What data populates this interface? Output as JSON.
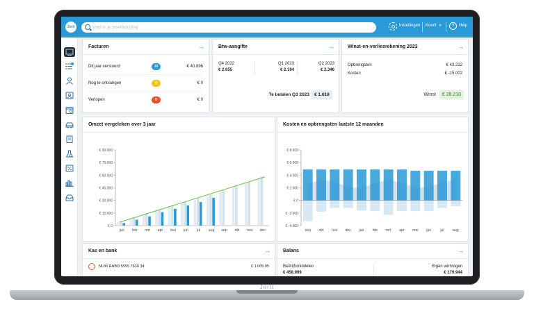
{
  "brand": "Jortt",
  "laptop_label": "Jortt",
  "search": {
    "placeholder": "Vind in je boekhouding"
  },
  "topbar": {
    "settings_label": "Instellingen",
    "user_label": "Koerlt",
    "user_chevron": "∨",
    "help_label": "Help"
  },
  "colors": {
    "primary": "#2a9ad6",
    "bar_light": "#cfe3ef",
    "green_line": "#6cc04a",
    "success_bg": "#e2f3dc"
  },
  "sidebar": {
    "icons": [
      "dashboard-icon",
      "list-icon",
      "person-icon",
      "contacts-icon",
      "calendar-icon",
      "car-icon",
      "document-icon",
      "flask-icon",
      "percent-icon",
      "bar-chart-icon",
      "inbox-icon"
    ]
  },
  "facturen": {
    "title": "Facturen",
    "rows": [
      {
        "label": "Dit jaar verstuurd",
        "count": "10",
        "amount": "€ 40.896",
        "color": "#2a9ad6"
      },
      {
        "label": "Nog te ontvangen",
        "count": "0",
        "amount": "€ 0",
        "color": "#f0c419"
      },
      {
        "label": "Verlopen",
        "count": "0",
        "amount": "€ 0",
        "color": "#e8532c"
      }
    ]
  },
  "btw": {
    "title": "Btw-aangifte",
    "quarters": [
      {
        "period": "Q4 2022",
        "amount": "€ 2.655"
      },
      {
        "period": "Q1 2023",
        "amount": "€ 2.194"
      },
      {
        "period": "Q2 2023",
        "amount": "€ 2.346"
      }
    ],
    "due_label": "Te betalen Q3 2023",
    "due_amount": "€ 1.618"
  },
  "winst": {
    "title": "Winst-en-verliesrekening 2023",
    "opbrengsten_label": "Opbrengsten",
    "opbrengsten": "€ 43.212",
    "kosten_label": "Kosten",
    "kosten": "€ -15.002",
    "winst_label": "Winst",
    "winst": "€ 28.210"
  },
  "omzet": {
    "title": "Omzet vergeleken over 3 jaar"
  },
  "kosten_chart": {
    "title": "Kosten en opbrengsten laatste 12 maanden"
  },
  "kas": {
    "title": "Kas en bank",
    "account": "NL86 RABO 5555 7630 34",
    "balance": "€ 1.005,95"
  },
  "balans": {
    "title": "Balans",
    "left_label": "Bedrijfsmiddelen",
    "left_value": "€ 458.999",
    "right_label": "Eigen vermogen",
    "right_value": "€ 179.944"
  },
  "chart_data": [
    {
      "type": "bar",
      "title": "Omzet vergeleken over 3 jaar",
      "categories": [
        "jan",
        "feb",
        "mrt",
        "apr",
        "mei",
        "jun",
        "jul",
        "aug",
        "sep",
        "okt",
        "nov",
        "dec"
      ],
      "yticks": [
        "€ 0",
        "€ 15.000",
        "€ 30.000",
        "€ 45.000",
        "€ 60.000",
        "€ 75.000",
        "€ 90.000"
      ],
      "ylim": [
        0,
        90000
      ],
      "series": [
        {
          "values": [
            4000,
            9000,
            14000,
            19000,
            23000,
            27000,
            31000,
            35000,
            40000,
            45000,
            50000,
            56000
          ]
        },
        {
          "values": [
            5000,
            10000,
            15000,
            20000,
            24000,
            28000,
            33000,
            37000,
            42000,
            47000,
            52000,
            58000
          ]
        },
        {
          "values": [
            3000,
            7000,
            11000,
            16000,
            20000,
            24000,
            28000,
            33000,
            0,
            0,
            0,
            0
          ]
        }
      ],
      "trend": [
        4000,
        58000
      ]
    },
    {
      "type": "bar",
      "title": "Kosten en opbrengsten laatste 12 maanden",
      "categories": [
        "sep",
        "okt",
        "nov",
        "dec",
        "jan",
        "feb",
        "mrt",
        "apr",
        "mei",
        "jun",
        "jul",
        "aug"
      ],
      "yticks": [
        "€ -4.000",
        "€ -2.000",
        "€ 0",
        "€ 2.000",
        "€ 4.000",
        "€ 6.000",
        "€ 8.000"
      ],
      "ylim": [
        -4000,
        8000
      ],
      "series": [
        {
          "name": "opbrengsten",
          "values": [
            4900,
            4900,
            4900,
            4900,
            4900,
            4900,
            4900,
            4900,
            4700,
            4700,
            4700,
            4700
          ]
        },
        {
          "name": "kosten",
          "values": [
            -3300,
            -1800,
            -1200,
            -1200,
            -1600,
            -1700,
            -2300,
            -1700,
            -1700,
            -1700,
            -1200,
            -900
          ]
        }
      ]
    }
  ]
}
